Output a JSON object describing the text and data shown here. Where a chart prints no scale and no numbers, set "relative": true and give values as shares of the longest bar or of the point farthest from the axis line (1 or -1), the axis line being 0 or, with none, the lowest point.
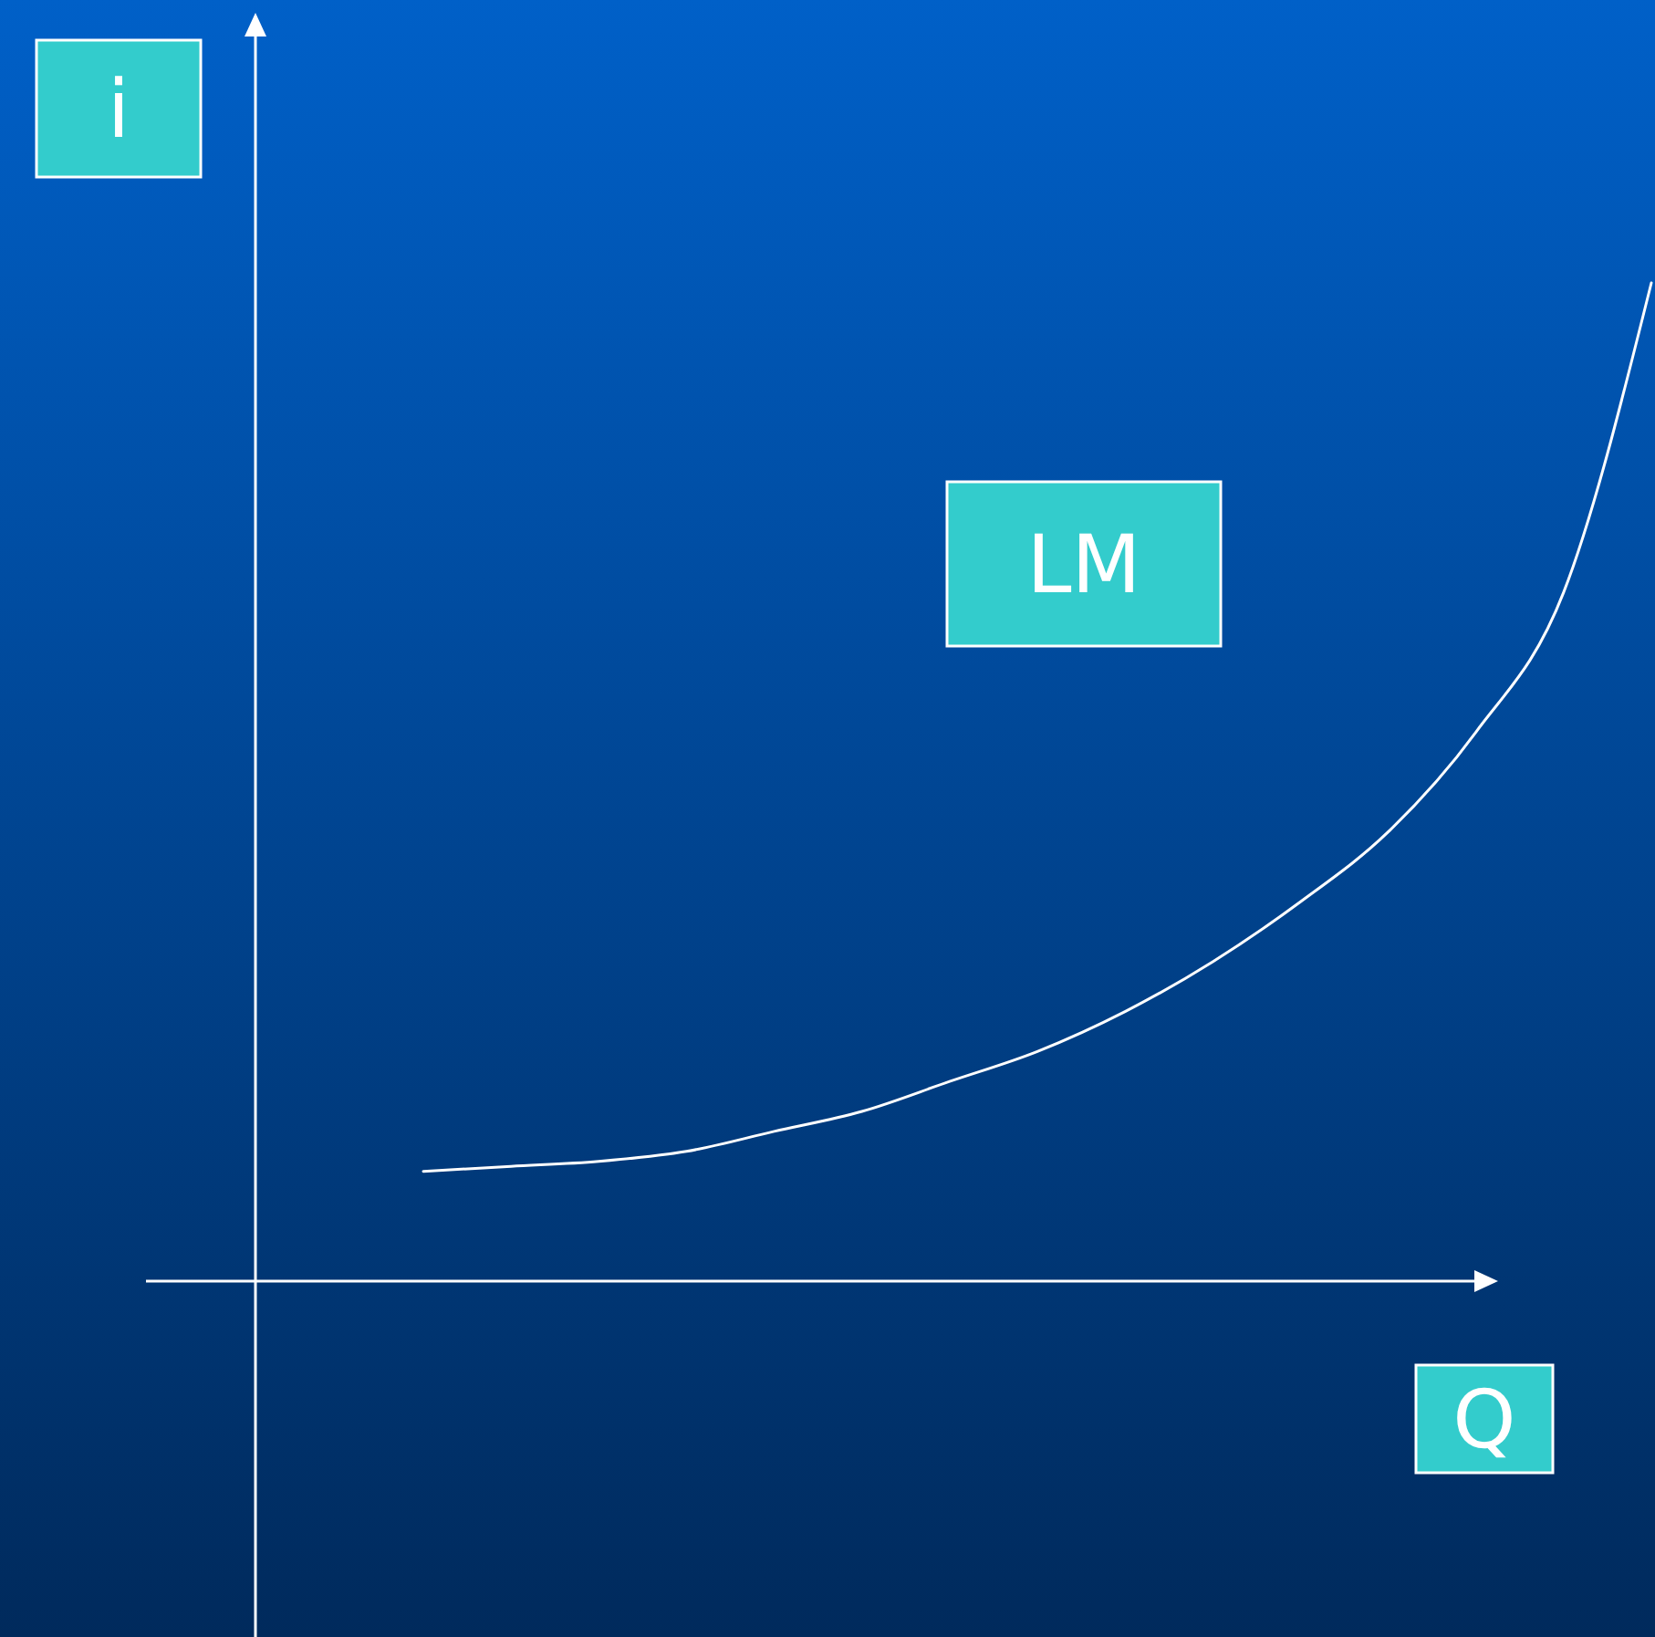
{
  "chart_data": {
    "type": "line",
    "xlabel": "Q",
    "ylabel": "i",
    "relative": true,
    "categories": [
      null,
      null,
      null,
      null,
      null,
      null,
      null,
      null,
      null,
      null,
      null,
      null,
      null,
      null,
      null
    ],
    "series": [
      {
        "name": "LM",
        "color": "#ffffff",
        "values": [
          0.11,
          0.115,
          0.12,
          0.13,
          0.15,
          0.17,
          0.2,
          0.23,
          0.27,
          0.32,
          0.38,
          0.45,
          0.55,
          0.69,
          1
        ]
      }
    ]
  }
}
